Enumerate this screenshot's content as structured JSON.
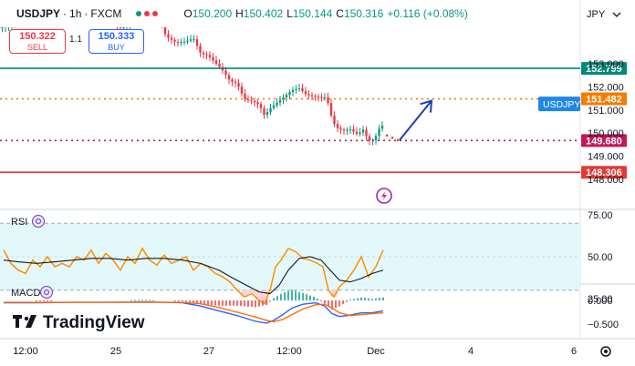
{
  "header": {
    "symbol": "USDJPY",
    "interval": "1h",
    "exchange": "FXCM",
    "sep": "·",
    "ohlc": {
      "o_label": "O",
      "o": "150.200",
      "h_label": "H",
      "h": "150.402",
      "l_label": "L",
      "l": "150.144",
      "c_label": "C",
      "c": "150.316",
      "change": "+0.116 (+0.08%)"
    }
  },
  "trade": {
    "sell_price": "150.322",
    "sell_label": "SELL",
    "spread": "1.1",
    "buy_price": "150.333",
    "buy_label": "BUY"
  },
  "currency": "JPY",
  "branding": "TradingView",
  "colors": {
    "teal": "#00897b",
    "orange": "#f57c00",
    "magenta": "#c2185b",
    "red": "#e53935",
    "arrow": "#1e40af",
    "up": "#089981",
    "down": "#f23645",
    "rsi": "#ff8f00",
    "macd": "#2962ff",
    "signal": "#ff6d00",
    "accent": "#1e88e5"
  },
  "chart_data": {
    "type": "candlestick",
    "symbol_label": "USDJPY",
    "x_ticks": [
      "12:00",
      "25",
      "27",
      "12:00",
      "Dec",
      "4",
      "6"
    ],
    "price_axis": {
      "ticks": [
        "153.000",
        "152.000",
        "151.000",
        "150.000",
        "149.000",
        "148.000"
      ],
      "range": [
        147.7,
        153.4
      ]
    },
    "price_lines": [
      {
        "name": "resistance-1",
        "value": 152.799,
        "label": "152.799",
        "color": "#00897b",
        "style": "solid"
      },
      {
        "name": "resistance-2",
        "value": 151.482,
        "label": "151.482",
        "color": "#f57c00",
        "style": "dotted"
      },
      {
        "name": "support-1",
        "value": 149.68,
        "label": "149.680",
        "color": "#c2185b",
        "style": "dotted"
      },
      {
        "name": "support-2",
        "value": 148.306,
        "label": "148.306",
        "color": "#e53935",
        "style": "solid"
      }
    ],
    "last_price": 150.316,
    "price_path": [
      [
        -1,
        154.6
      ],
      [
        12,
        154.7
      ],
      [
        22,
        154.9
      ],
      [
        33,
        155.4
      ],
      [
        42,
        155.3
      ],
      [
        52,
        155.0
      ],
      [
        62,
        155.3
      ],
      [
        72,
        155.5
      ],
      [
        82,
        155.1
      ],
      [
        92,
        155.2
      ],
      [
        102,
        154.7
      ],
      [
        112,
        155.2
      ],
      [
        122,
        155.0
      ],
      [
        132,
        154.6
      ],
      [
        142,
        154.7
      ],
      [
        152,
        154.9
      ],
      [
        162,
        155.3
      ],
      [
        172,
        155.1
      ],
      [
        182,
        154.2
      ],
      [
        192,
        154.0
      ],
      [
        202,
        154.0
      ],
      [
        212,
        154.1
      ],
      [
        220,
        153.4
      ],
      [
        228,
        153.3
      ],
      [
        236,
        153.0
      ],
      [
        244,
        152.7
      ],
      [
        252,
        152.3
      ],
      [
        260,
        152.2
      ],
      [
        268,
        151.5
      ],
      [
        276,
        151.4
      ],
      [
        284,
        151.2
      ],
      [
        290,
        150.7
      ],
      [
        296,
        151.0
      ],
      [
        304,
        151.3
      ],
      [
        312,
        151.6
      ],
      [
        320,
        151.9
      ],
      [
        328,
        152.0
      ],
      [
        336,
        151.7
      ],
      [
        344,
        151.6
      ],
      [
        352,
        151.5
      ],
      [
        358,
        151.5
      ],
      [
        362,
        150.8
      ],
      [
        368,
        150.2
      ],
      [
        376,
        150.1
      ],
      [
        384,
        150.2
      ],
      [
        392,
        150.0
      ],
      [
        398,
        150.2
      ],
      [
        404,
        149.7
      ],
      [
        410,
        149.7
      ],
      [
        416,
        150.2
      ],
      [
        420,
        150.3
      ]
    ],
    "projection": {
      "dots": [
        [
          424,
          149.9
        ],
        [
          430,
          149.8
        ],
        [
          436,
          149.7
        ]
      ],
      "arrow": [
        [
          438,
          149.7
        ],
        [
          473,
          151.4
        ]
      ]
    },
    "rsi": {
      "label": "RSI",
      "ticks": [
        "75.00",
        "50.00",
        "25.00"
      ],
      "upper": 70,
      "lower": 30,
      "range": [
        10,
        80
      ],
      "rsi_values": [
        [
          4,
          54
        ],
        [
          12,
          46
        ],
        [
          20,
          42
        ],
        [
          28,
          40
        ],
        [
          36,
          48
        ],
        [
          44,
          44
        ],
        [
          52,
          50
        ],
        [
          60,
          44
        ],
        [
          68,
          46
        ],
        [
          76,
          44
        ],
        [
          84,
          50
        ],
        [
          92,
          48
        ],
        [
          100,
          54
        ],
        [
          108,
          46
        ],
        [
          116,
          52
        ],
        [
          124,
          48
        ],
        [
          132,
          42
        ],
        [
          140,
          50
        ],
        [
          148,
          46
        ],
        [
          156,
          55
        ],
        [
          164,
          48
        ],
        [
          172,
          45
        ],
        [
          180,
          51
        ],
        [
          188,
          46
        ],
        [
          196,
          48
        ],
        [
          204,
          50
        ],
        [
          212,
          42
        ],
        [
          220,
          46
        ],
        [
          228,
          44
        ],
        [
          236,
          40
        ],
        [
          244,
          38
        ],
        [
          252,
          35
        ],
        [
          260,
          30
        ],
        [
          268,
          26
        ],
        [
          276,
          28
        ],
        [
          284,
          24
        ],
        [
          290,
          22
        ],
        [
          296,
          30
        ],
        [
          302,
          44
        ],
        [
          308,
          48
        ],
        [
          316,
          55
        ],
        [
          324,
          53
        ],
        [
          332,
          49
        ],
        [
          340,
          48
        ],
        [
          348,
          46
        ],
        [
          354,
          44
        ],
        [
          360,
          30
        ],
        [
          366,
          26
        ],
        [
          372,
          32
        ],
        [
          380,
          36
        ],
        [
          388,
          42
        ],
        [
          396,
          50
        ],
        [
          404,
          38
        ],
        [
          412,
          44
        ],
        [
          420,
          54
        ]
      ],
      "ma_values": [
        [
          4,
          48
        ],
        [
          20,
          47
        ],
        [
          40,
          46
        ],
        [
          60,
          47
        ],
        [
          80,
          48
        ],
        [
          100,
          49
        ],
        [
          120,
          49
        ],
        [
          140,
          48
        ],
        [
          160,
          49
        ],
        [
          180,
          49
        ],
        [
          200,
          48
        ],
        [
          220,
          46
        ],
        [
          240,
          42
        ],
        [
          256,
          37
        ],
        [
          270,
          33
        ],
        [
          284,
          29
        ],
        [
          296,
          28
        ],
        [
          306,
          33
        ],
        [
          316,
          42
        ],
        [
          328,
          49
        ],
        [
          340,
          50
        ],
        [
          352,
          48
        ],
        [
          362,
          42
        ],
        [
          372,
          36
        ],
        [
          384,
          35
        ],
        [
          396,
          37
        ],
        [
          408,
          40
        ],
        [
          420,
          42
        ]
      ]
    },
    "macd": {
      "label": "MACD",
      "ticks": [
        "0.000",
        "−0.500"
      ],
      "range": [
        -0.75,
        0.2
      ],
      "macd_values": [
        [
          4,
          -0.05
        ],
        [
          40,
          -0.05
        ],
        [
          80,
          -0.04
        ],
        [
          120,
          -0.04
        ],
        [
          160,
          -0.03
        ],
        [
          200,
          -0.05
        ],
        [
          220,
          -0.12
        ],
        [
          240,
          -0.22
        ],
        [
          260,
          -0.32
        ],
        [
          280,
          -0.44
        ],
        [
          292,
          -0.48
        ],
        [
          300,
          -0.42
        ],
        [
          310,
          -0.3
        ],
        [
          320,
          -0.16
        ],
        [
          332,
          -0.08
        ],
        [
          346,
          -0.05
        ],
        [
          356,
          -0.12
        ],
        [
          364,
          -0.28
        ],
        [
          372,
          -0.34
        ],
        [
          384,
          -0.31
        ],
        [
          396,
          -0.26
        ],
        [
          408,
          -0.26
        ],
        [
          420,
          -0.22
        ]
      ],
      "signal_values": [
        [
          4,
          -0.04
        ],
        [
          40,
          -0.04
        ],
        [
          80,
          -0.04
        ],
        [
          120,
          -0.04
        ],
        [
          160,
          -0.04
        ],
        [
          200,
          -0.04
        ],
        [
          220,
          -0.07
        ],
        [
          240,
          -0.15
        ],
        [
          260,
          -0.25
        ],
        [
          280,
          -0.35
        ],
        [
          292,
          -0.42
        ],
        [
          300,
          -0.45
        ],
        [
          310,
          -0.4
        ],
        [
          320,
          -0.3
        ],
        [
          332,
          -0.18
        ],
        [
          346,
          -0.09
        ],
        [
          356,
          -0.08
        ],
        [
          364,
          -0.16
        ],
        [
          372,
          -0.26
        ],
        [
          384,
          -0.32
        ],
        [
          396,
          -0.3
        ],
        [
          408,
          -0.28
        ],
        [
          420,
          -0.26
        ]
      ]
    }
  }
}
